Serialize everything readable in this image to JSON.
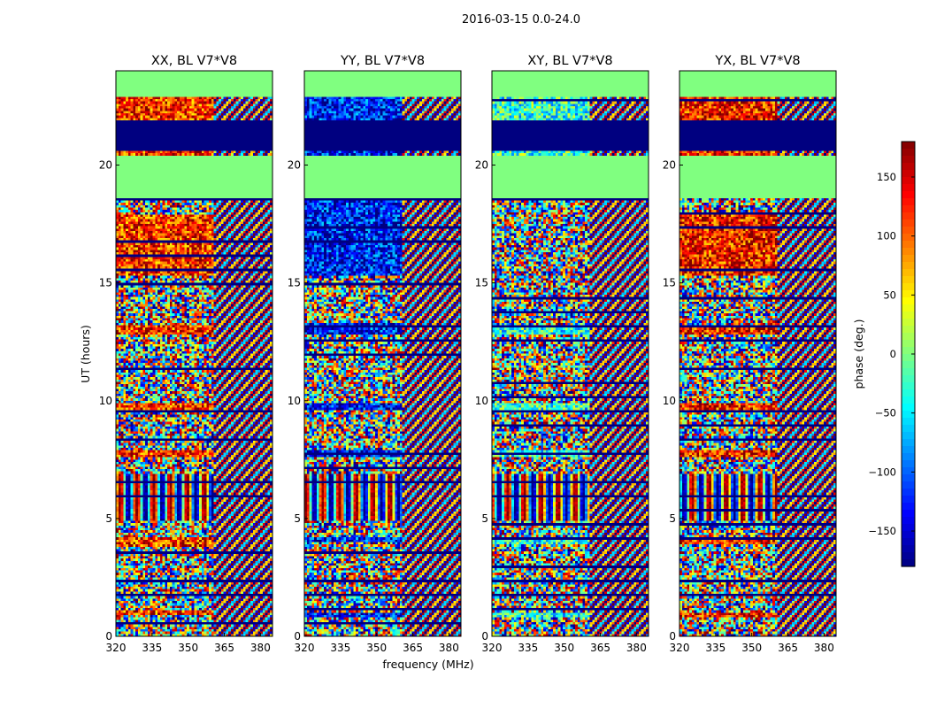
{
  "figure": {
    "suptitle": "2016-03-15 0.0-24.0"
  },
  "chart_data": {
    "type": "heatmap",
    "xlabel": "frequency (MHz)",
    "ylabel": "UT (hours)",
    "xlim": [
      320,
      385
    ],
    "ylim": [
      0,
      24
    ],
    "xticks": [
      320,
      335,
      350,
      365,
      380
    ],
    "yticks": [
      0,
      5,
      10,
      15,
      20
    ],
    "colormap": "jet",
    "colorbar": {
      "label": "phase (deg.)",
      "range": [
        -180,
        180
      ],
      "ticks": [
        150,
        100,
        50,
        0,
        -50,
        -100,
        -150
      ],
      "tick_labels": [
        "150",
        "100",
        "50",
        "0",
        "−50",
        "−100",
        "−150"
      ]
    },
    "panels": [
      {
        "title": "XX, BL V7*V8",
        "hot_bands": [
          [
            0.9,
            1.1
          ],
          [
            3.8,
            4.2
          ],
          [
            7.6,
            7.9
          ],
          [
            9.6,
            9.9
          ],
          [
            12.8,
            13.2
          ],
          [
            15.3,
            17.9
          ],
          [
            20.3,
            22.9
          ]
        ],
        "hot_value": 120
      },
      {
        "title": "YY, BL V7*V8",
        "hot_bands": [
          [
            0.8,
            1.0
          ],
          [
            4.0,
            4.2
          ],
          [
            7.6,
            7.9
          ],
          [
            9.6,
            9.9
          ],
          [
            12.8,
            13.3
          ],
          [
            15.3,
            18.6
          ],
          [
            20.3,
            22.9
          ]
        ],
        "hot_value": -130
      },
      {
        "title": "XY, BL V7*V8",
        "hot_bands": [
          [
            0.8,
            1.0
          ],
          [
            3.9,
            4.2
          ],
          [
            7.6,
            7.9
          ],
          [
            9.6,
            9.9
          ],
          [
            12.8,
            13.2
          ],
          [
            20.3,
            22.9
          ]
        ],
        "hot_value": -30
      },
      {
        "title": "YX, BL V7*V8",
        "hot_bands": [
          [
            0.8,
            1.0
          ],
          [
            3.9,
            4.2
          ],
          [
            7.6,
            7.9
          ],
          [
            9.6,
            9.9
          ],
          [
            12.8,
            13.2
          ],
          [
            15.3,
            17.9
          ],
          [
            20.3,
            22.9
          ]
        ],
        "hot_value": 130
      }
    ],
    "common_features": {
      "flagged_green_bands": [
        [
          18.6,
          20.4
        ],
        [
          22.9,
          24.0
        ]
      ],
      "saturated_low_band": [
        20.6,
        21.9
      ],
      "sinusoid_fringe_band": [
        4.9,
        6.9
      ]
    }
  }
}
